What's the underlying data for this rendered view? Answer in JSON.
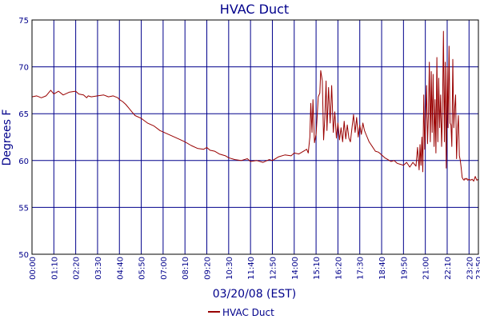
{
  "chart_data": {
    "type": "line",
    "title": "HVAC Duct",
    "xlabel": "03/20/08 (EST)",
    "ylabel": "Degrees F",
    "ylim": [
      50,
      75
    ],
    "xlim_minutes": [
      0,
      1430
    ],
    "yticks": [
      50,
      55,
      60,
      65,
      70,
      75
    ],
    "xtick_minutes": [
      0,
      70,
      140,
      210,
      280,
      350,
      420,
      490,
      560,
      630,
      700,
      770,
      840,
      910,
      980,
      1050,
      1120,
      1190,
      1260,
      1330,
      1400,
      1430
    ],
    "xtick_labels": [
      "00:00",
      "01:10",
      "02:20",
      "03:30",
      "04:40",
      "05:50",
      "07:00",
      "08:10",
      "09:20",
      "10:30",
      "11:40",
      "12:50",
      "14:00",
      "15:10",
      "16:20",
      "17:30",
      "18:40",
      "19:50",
      "21:00",
      "22:10",
      "23:20",
      "23:50"
    ],
    "grid": true,
    "legend_position": "bottom-center",
    "colors": {
      "series": "#990000",
      "axis_text": "#00008B",
      "grid": "#00008B",
      "frame": "#000000"
    },
    "series": [
      {
        "name": "HVAC Duct",
        "x_minutes": [
          0,
          15,
          30,
          45,
          55,
          60,
          70,
          85,
          100,
          120,
          140,
          150,
          165,
          175,
          180,
          190,
          210,
          230,
          245,
          260,
          275,
          280,
          290,
          300,
          310,
          320,
          330,
          350,
          370,
          390,
          410,
          430,
          450,
          470,
          490,
          510,
          530,
          550,
          560,
          570,
          585,
          600,
          620,
          630,
          650,
          670,
          690,
          700,
          720,
          740,
          760,
          770,
          790,
          810,
          830,
          840,
          855,
          870,
          880,
          885,
          890,
          893,
          897,
          900,
          905,
          910,
          913,
          917,
          922,
          925,
          930,
          934,
          938,
          942,
          945,
          950,
          955,
          960,
          965,
          970,
          975,
          980,
          985,
          990,
          995,
          1000,
          1005,
          1010,
          1015,
          1020,
          1025,
          1030,
          1035,
          1040,
          1045,
          1050,
          1055,
          1060,
          1065,
          1070,
          1080,
          1090,
          1100,
          1110,
          1120,
          1130,
          1140,
          1150,
          1160,
          1170,
          1180,
          1190,
          1200,
          1210,
          1220,
          1230,
          1235,
          1240,
          1243,
          1246,
          1249,
          1252,
          1255,
          1258,
          1261,
          1264,
          1267,
          1270,
          1273,
          1276,
          1279,
          1282,
          1285,
          1288,
          1291,
          1294,
          1297,
          1300,
          1303,
          1306,
          1309,
          1312,
          1315,
          1318,
          1321,
          1324,
          1327,
          1330,
          1333,
          1336,
          1339,
          1342,
          1345,
          1348,
          1351,
          1354,
          1357,
          1360,
          1363,
          1366,
          1369,
          1372,
          1375,
          1378,
          1381,
          1384,
          1387,
          1390,
          1393,
          1396,
          1400,
          1405,
          1410,
          1415,
          1420,
          1425,
          1430
        ],
        "values": [
          66.8,
          66.9,
          66.7,
          66.9,
          67.3,
          67.5,
          67.1,
          67.4,
          67.0,
          67.3,
          67.4,
          67.1,
          67.0,
          66.7,
          66.9,
          66.8,
          66.9,
          67.0,
          66.8,
          66.9,
          66.7,
          66.5,
          66.3,
          66.0,
          65.6,
          65.2,
          64.8,
          64.5,
          64.0,
          63.7,
          63.2,
          62.9,
          62.6,
          62.3,
          62.0,
          61.6,
          61.3,
          61.2,
          61.4,
          61.1,
          61.0,
          60.7,
          60.5,
          60.3,
          60.1,
          60.0,
          60.2,
          59.9,
          60.0,
          59.8,
          60.1,
          60.0,
          60.4,
          60.6,
          60.5,
          60.8,
          60.7,
          61.0,
          61.2,
          60.8,
          62.5,
          66.1,
          63.0,
          66.5,
          61.9,
          62.8,
          64.5,
          66.8,
          67.2,
          69.6,
          68.5,
          62.2,
          64.5,
          68.5,
          63.2,
          67.8,
          64.0,
          68.0,
          63.0,
          65.2,
          62.4,
          64.0,
          62.2,
          63.5,
          62.0,
          64.2,
          62.3,
          63.8,
          62.4,
          62.0,
          63.5,
          64.9,
          63.0,
          64.6,
          62.5,
          63.8,
          62.8,
          64.0,
          63.2,
          62.8,
          62.0,
          61.5,
          61.0,
          60.9,
          60.6,
          60.3,
          60.1,
          59.9,
          60.0,
          59.7,
          59.6,
          59.5,
          59.8,
          59.3,
          59.8,
          59.4,
          61.4,
          59.0,
          61.7,
          59.5,
          62.5,
          58.8,
          67.0,
          61.2,
          64.5,
          68.0,
          61.8,
          65.0,
          70.5,
          62.0,
          69.5,
          63.0,
          69.2,
          61.5,
          66.5,
          60.8,
          71.0,
          62.0,
          68.8,
          63.5,
          67.0,
          61.5,
          65.2,
          73.8,
          62.0,
          70.5,
          59.2,
          70.0,
          63.5,
          72.2,
          64.0,
          63.8,
          61.5,
          70.8,
          63.5,
          65.5,
          67.0,
          60.2,
          63.2,
          64.8,
          60.5,
          60.0,
          59.2,
          58.2,
          58.0,
          57.9,
          58.1,
          58.0,
          58.1,
          57.9,
          58.0,
          57.9,
          58.0,
          57.8,
          58.3,
          57.9,
          58.0
        ]
      }
    ]
  }
}
